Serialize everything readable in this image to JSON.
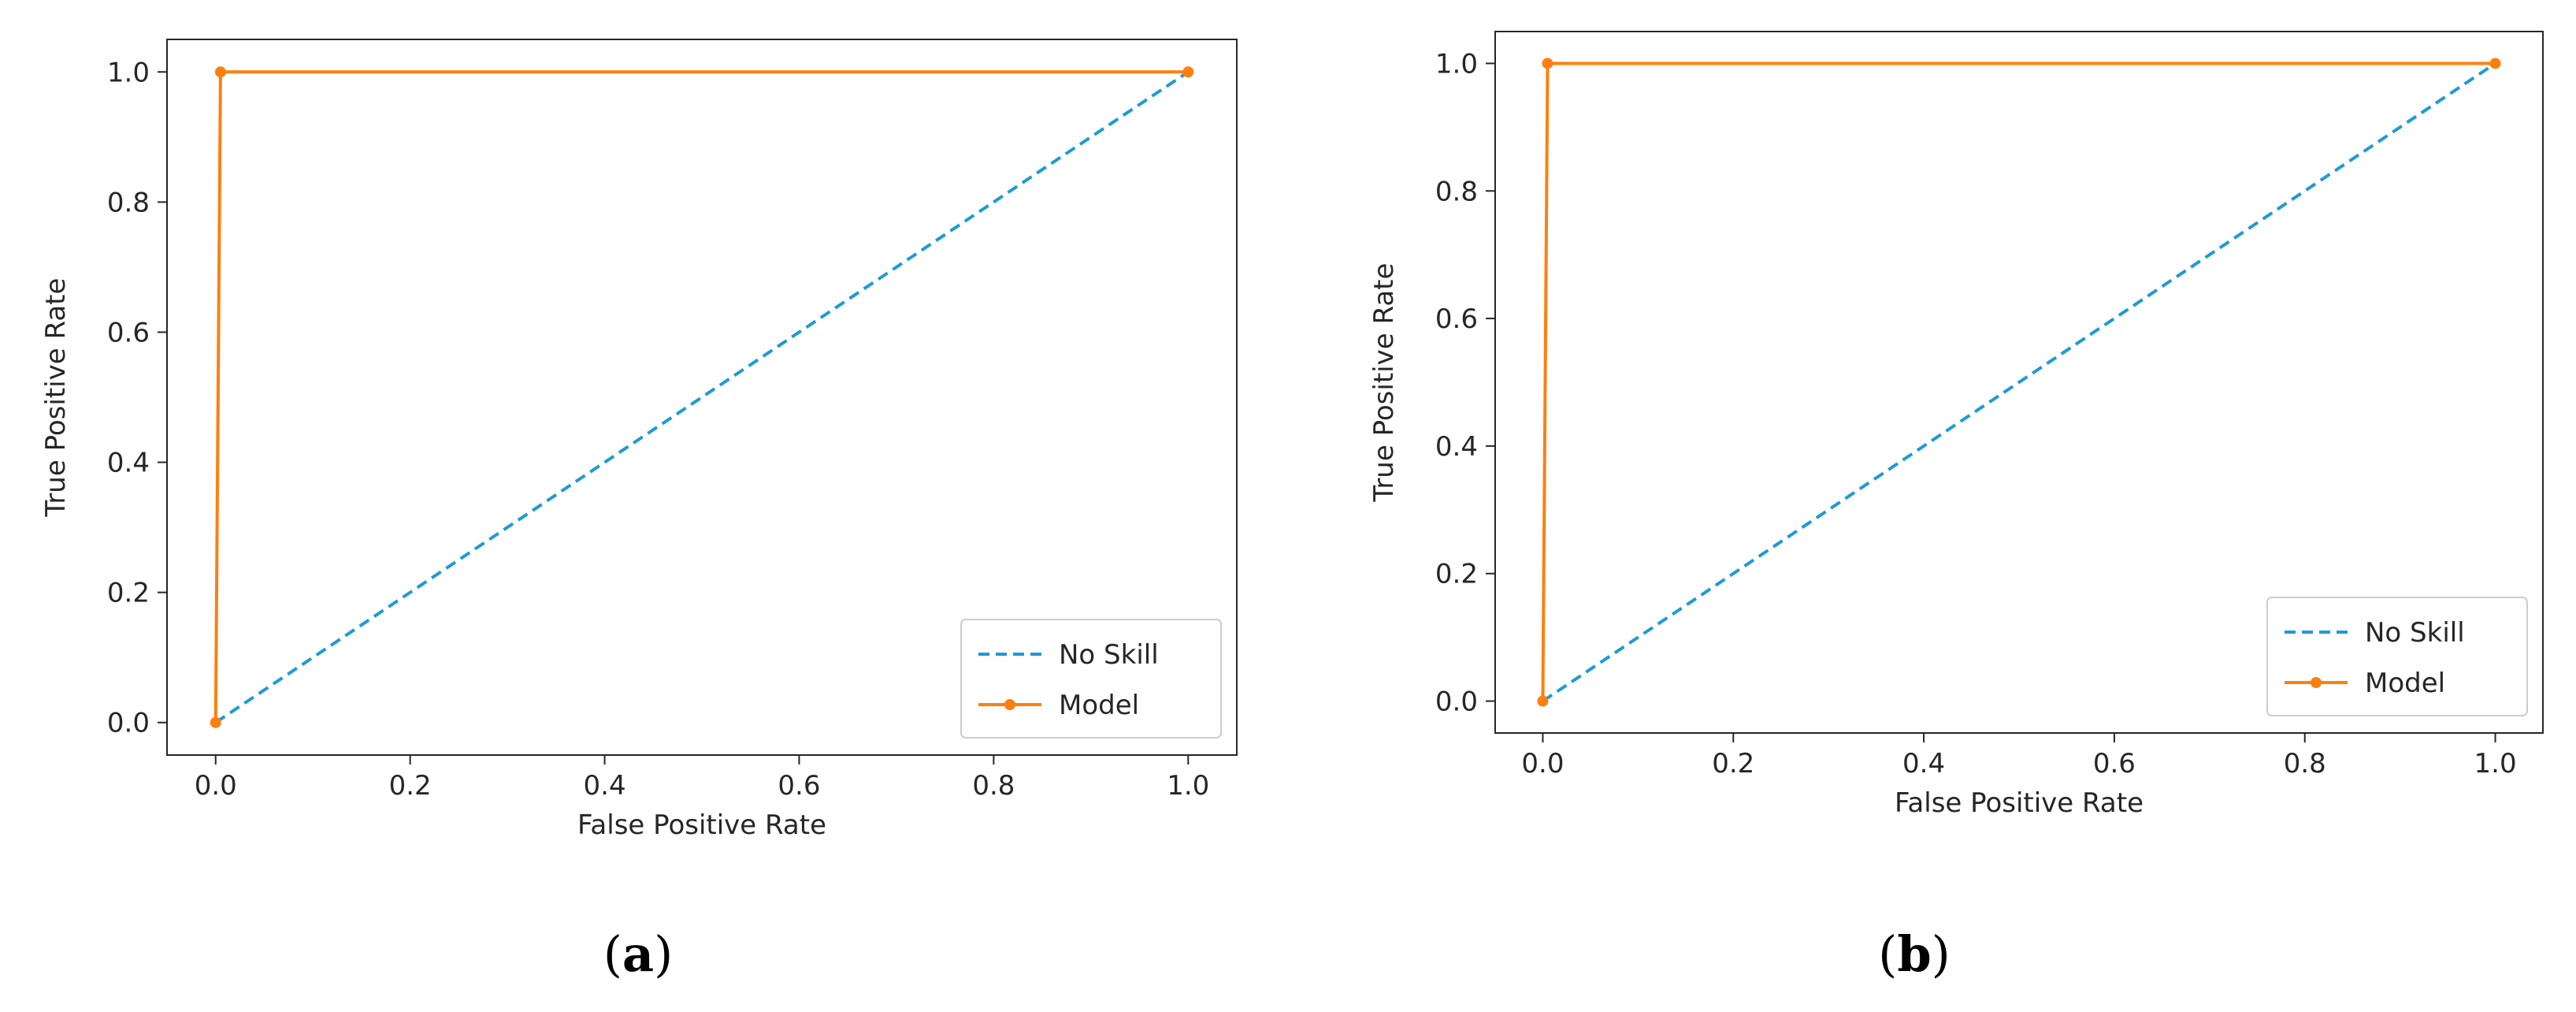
{
  "chart_data": [
    {
      "type": "line",
      "caption": {
        "open": "(",
        "letter": "a",
        "close": ")"
      },
      "xlabel": "False Positive Rate",
      "ylabel": "True Positive Rate",
      "xlim": [
        -0.05,
        1.05
      ],
      "ylim": [
        -0.05,
        1.05
      ],
      "xticks": [
        "0.0",
        "0.2",
        "0.4",
        "0.6",
        "0.8",
        "1.0"
      ],
      "yticks": [
        "0.0",
        "0.2",
        "0.4",
        "0.6",
        "0.8",
        "1.0"
      ],
      "legend_position": "lower-right",
      "grid": false,
      "series": [
        {
          "name": "No Skill",
          "style": "dashed",
          "color": "#1f9ad6",
          "x": [
            0,
            1
          ],
          "y": [
            0,
            1
          ]
        },
        {
          "name": "Model",
          "style": "solid",
          "marker": "dot",
          "color": "#ff7f0e",
          "x": [
            0,
            0.005,
            1
          ],
          "y": [
            0,
            1,
            1
          ]
        }
      ]
    },
    {
      "type": "line",
      "caption": {
        "open": "(",
        "letter": "b",
        "close": ")"
      },
      "xlabel": "False Positive Rate",
      "ylabel": "True Positive Rate",
      "xlim": [
        -0.05,
        1.05
      ],
      "ylim": [
        -0.05,
        1.05
      ],
      "xticks": [
        "0.0",
        "0.2",
        "0.4",
        "0.6",
        "0.8",
        "1.0"
      ],
      "yticks": [
        "0.0",
        "0.2",
        "0.4",
        "0.6",
        "0.8",
        "1.0"
      ],
      "legend_position": "lower-right",
      "grid": false,
      "series": [
        {
          "name": "No Skill",
          "style": "dashed",
          "color": "#1f9ad6",
          "x": [
            0,
            1
          ],
          "y": [
            0,
            1
          ]
        },
        {
          "name": "Model",
          "style": "solid",
          "marker": "dot",
          "color": "#ff7f0e",
          "x": [
            0,
            0.005,
            1
          ],
          "y": [
            0,
            1,
            1
          ]
        }
      ]
    }
  ]
}
